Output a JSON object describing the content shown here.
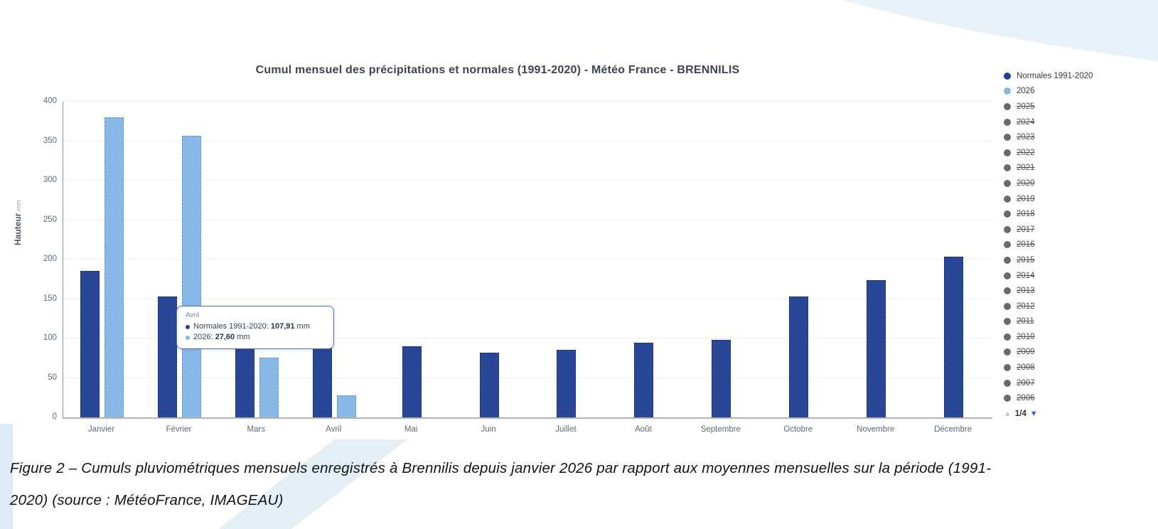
{
  "chart_data": {
    "type": "bar",
    "title": "Cumul mensuel des précipitations et normales (1991-2020) - Météo France - BRENNILIS",
    "ylabel": "Hauteur",
    "ylabel_unit": "mm",
    "ylim": [
      0,
      400
    ],
    "yticks": [
      0,
      50,
      100,
      150,
      200,
      250,
      300,
      350,
      400
    ],
    "grid": true,
    "legend_position": "right",
    "categories": [
      "Janvier",
      "Février",
      "Mars",
      "Avril",
      "Mai",
      "Juin",
      "Juillet",
      "Août",
      "Septembre",
      "Octobre",
      "Novembre",
      "Décembre"
    ],
    "series": [
      {
        "name": "Normales 1991-2020",
        "color": "#2a4696",
        "values": [
          186,
          153,
          110,
          107.91,
          90,
          82,
          86,
          95,
          98,
          153,
          174,
          204
        ]
      },
      {
        "name": "2026",
        "color": "#88b8e5",
        "values": [
          380,
          357,
          76,
          27.6,
          null,
          null,
          null,
          null,
          null,
          null,
          null,
          null
        ]
      }
    ]
  },
  "legend": {
    "items": [
      {
        "label": "Normales 1991-2020",
        "color": "#1f3f9e",
        "struck": false
      },
      {
        "label": "2026",
        "color": "#85b7e4",
        "struck": false
      },
      {
        "label": "2025",
        "color": "#6a6a6a",
        "struck": true
      },
      {
        "label": "2024",
        "color": "#6a6a6a",
        "struck": true
      },
      {
        "label": "2023",
        "color": "#6a6a6a",
        "struck": true
      },
      {
        "label": "2022",
        "color": "#6a6a6a",
        "struck": true
      },
      {
        "label": "2021",
        "color": "#6a6a6a",
        "struck": true
      },
      {
        "label": "2020",
        "color": "#6a6a6a",
        "struck": true
      },
      {
        "label": "2019",
        "color": "#6a6a6a",
        "struck": true
      },
      {
        "label": "2018",
        "color": "#6a6a6a",
        "struck": true
      },
      {
        "label": "2017",
        "color": "#6a6a6a",
        "struck": true
      },
      {
        "label": "2016",
        "color": "#6a6a6a",
        "struck": true
      },
      {
        "label": "2015",
        "color": "#6a6a6a",
        "struck": true
      },
      {
        "label": "2014",
        "color": "#6a6a6a",
        "struck": true
      },
      {
        "label": "2013",
        "color": "#6a6a6a",
        "struck": true
      },
      {
        "label": "2012",
        "color": "#6a6a6a",
        "struck": true
      },
      {
        "label": "2011",
        "color": "#6a6a6a",
        "struck": true
      },
      {
        "label": "2010",
        "color": "#6a6a6a",
        "struck": true
      },
      {
        "label": "2009",
        "color": "#6a6a6a",
        "struck": true
      },
      {
        "label": "2008",
        "color": "#6a6a6a",
        "struck": true
      },
      {
        "label": "2007",
        "color": "#6a6a6a",
        "struck": true
      },
      {
        "label": "2006",
        "color": "#6a6a6a",
        "struck": true
      }
    ],
    "pagination": {
      "up_symbol": "▲",
      "label": "1/4",
      "down_symbol": "▼"
    }
  },
  "tooltip": {
    "header": "Avril",
    "rows": [
      {
        "label": "Normales 1991-2020",
        "value": "107,91",
        "unit": "mm",
        "color": "#1f3f9e"
      },
      {
        "label": "2026",
        "value": "27,60",
        "unit": "mm",
        "color": "#85b7e4"
      }
    ]
  },
  "caption": {
    "line1": "Figure 2 – Cumuls pluviométriques mensuels enregistrés à Brennilis depuis janvier 2026 par rapport aux moyennes mensuelles sur la période (1991-",
    "line2": "2020)  (source : MétéoFrance, IMAGEAU)"
  },
  "colors": {
    "normales_bar": "#2a4696",
    "year2026_bar": "#88b8e5",
    "deco_light_blue": "#e9f2f8",
    "gridline": "#f0f0f0"
  }
}
